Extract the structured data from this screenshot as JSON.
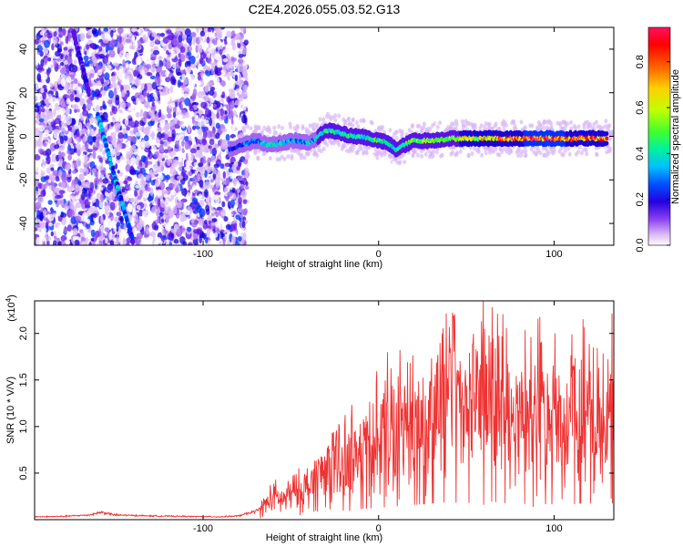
{
  "figure_title": "C2E4.2026.055.03.52.G13",
  "colors": {
    "snr_line": "#ee3333",
    "axis": "#000000",
    "colormap": [
      "#ffffff",
      "#d9b8f5",
      "#a064f0",
      "#5a14e6",
      "#1c00d8",
      "#0030ff",
      "#00a8ff",
      "#00e0d0",
      "#00f080",
      "#60ff00",
      "#d0ff00",
      "#ffd000",
      "#ff7000",
      "#ff0000",
      "#ff2a7a",
      "#ff0055"
    ]
  },
  "chart_data": [
    {
      "type": "heatmap",
      "title": "C2E4.2026.055.03.52.G13",
      "xlabel": "Height of straight line (km)",
      "ylabel": "Frequency (Hz)",
      "xlim": [
        -196,
        134
      ],
      "ylim": [
        -50,
        50
      ],
      "x_ticks": [
        -100,
        0,
        100
      ],
      "x_tick_labels": [
        "-100",
        "0",
        "100"
      ],
      "y_ticks": [
        -40,
        -20,
        0,
        20,
        40
      ],
      "y_tick_labels": [
        "-40",
        "-20",
        "0",
        "20",
        "40"
      ],
      "colorbar": {
        "label": "Normalized spectral amplitude",
        "range": [
          0,
          0.95
        ],
        "ticks": [
          0.0,
          0.2,
          0.4,
          0.6,
          0.8
        ],
        "tick_labels": [
          "0.0",
          "0.2",
          "0.4",
          "0.6",
          "0.8"
        ]
      },
      "noise_region_x": [
        -196,
        -75
      ],
      "dominant_track": {
        "x": [
          -85,
          -78,
          -70,
          -62,
          -55,
          -48,
          -40,
          -35,
          -30,
          -25,
          -20,
          -15,
          -10,
          -5,
          0,
          5,
          10,
          15,
          20,
          30,
          40,
          50,
          60,
          70,
          80,
          90,
          100,
          110,
          120,
          130
        ],
        "y": [
          -6,
          -4,
          -2,
          -4,
          -3,
          -2,
          -3,
          -1,
          3,
          2,
          1,
          0,
          0,
          -1,
          -2,
          -3,
          -6,
          -4,
          -2,
          -2,
          -1,
          -1,
          -1,
          -1,
          -1,
          -1,
          -1,
          -1,
          -1,
          -1
        ],
        "amplitude": [
          0.3,
          0.35,
          0.4,
          0.45,
          0.45,
          0.4,
          0.4,
          0.45,
          0.5,
          0.5,
          0.5,
          0.5,
          0.5,
          0.5,
          0.55,
          0.5,
          0.5,
          0.55,
          0.6,
          0.6,
          0.6,
          0.65,
          0.7,
          0.8,
          0.8,
          0.85,
          0.85,
          0.8,
          0.8,
          0.8
        ]
      },
      "secondary_tracks": [
        {
          "x": [
            -160,
            -150,
            -140
          ],
          "y": [
            10,
            -20,
            -48
          ],
          "amplitude": [
            0.45,
            0.4,
            0.35
          ]
        },
        {
          "x": [
            -174,
            -165
          ],
          "y": [
            48,
            20
          ],
          "amplitude": [
            0.25,
            0.25
          ]
        }
      ]
    },
    {
      "type": "line",
      "xlabel": "Height of straight line (km)",
      "ylabel": "SNR (10 * V/V)",
      "y_multiplier_label": "(x10",
      "y_multiplier_exponent": "4",
      "y_multiplier_close": ")",
      "xlim": [
        -196,
        134
      ],
      "ylim": [
        0,
        23500
      ],
      "x_ticks": [
        -100,
        0,
        100
      ],
      "x_tick_labels": [
        "-100",
        "0",
        "100"
      ],
      "y_ticks": [
        5000,
        10000,
        15000,
        20000
      ],
      "y_tick_labels": [
        "0.5",
        "1.0",
        "1.5",
        "2.0"
      ],
      "series": [
        {
          "x": [
            -196,
            -180,
            -165,
            -158,
            -150,
            -130,
            -110,
            -90,
            -80,
            -70,
            -65,
            -60,
            -55,
            -50,
            -45,
            -40,
            -35,
            -30,
            -25,
            -20,
            -15,
            -10,
            -5,
            0,
            5,
            10,
            15,
            20,
            25,
            30,
            35,
            40,
            45,
            50,
            55,
            60,
            65,
            70,
            75,
            80,
            85,
            90,
            95,
            100,
            105,
            110,
            115,
            120,
            125,
            130,
            134
          ],
          "y": [
            300,
            350,
            500,
            800,
            500,
            400,
            350,
            300,
            400,
            900,
            1500,
            2500,
            2000,
            2800,
            3000,
            3500,
            4500,
            5500,
            6000,
            6500,
            7000,
            7500,
            8000,
            8500,
            9000,
            9500,
            10000,
            10500,
            11000,
            11500,
            12000,
            12500,
            12000,
            12000,
            11500,
            12500,
            13000,
            12000,
            11500,
            11000,
            11500,
            11500,
            11000,
            11000,
            10500,
            11000,
            11500,
            11500,
            12000,
            12000,
            11500
          ]
        }
      ]
    }
  ]
}
